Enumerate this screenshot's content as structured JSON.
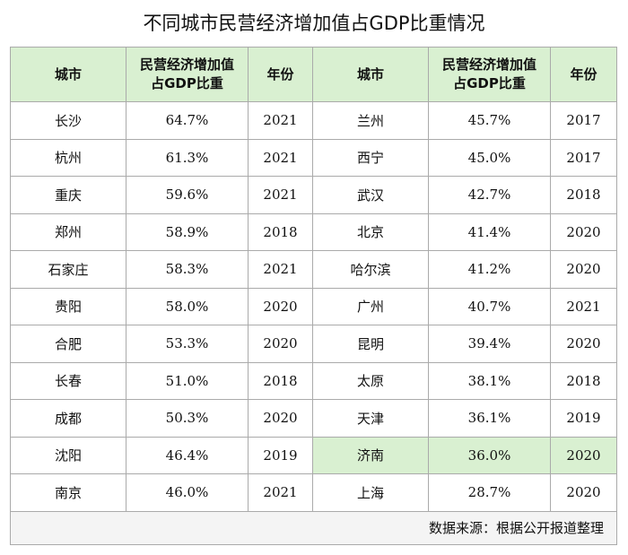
{
  "title": "不同城市民营经济增加值占GDP比重情况",
  "headers": {
    "city": "城市",
    "share_line1": "民营经济增加值",
    "share_line2": "占GDP比重",
    "year": "年份"
  },
  "left_rows": [
    {
      "city": "长沙",
      "share": "64.7%",
      "year": "2021"
    },
    {
      "city": "杭州",
      "share": "61.3%",
      "year": "2021"
    },
    {
      "city": "重庆",
      "share": "59.6%",
      "year": "2021"
    },
    {
      "city": "郑州",
      "share": "58.9%",
      "year": "2018"
    },
    {
      "city": "石家庄",
      "share": "58.3%",
      "year": "2021"
    },
    {
      "city": "贵阳",
      "share": "58.0%",
      "year": "2020"
    },
    {
      "city": "合肥",
      "share": "53.3%",
      "year": "2020"
    },
    {
      "city": "长春",
      "share": "51.0%",
      "year": "2018"
    },
    {
      "city": "成都",
      "share": "50.3%",
      "year": "2020"
    },
    {
      "city": "沈阳",
      "share": "46.4%",
      "year": "2019"
    },
    {
      "city": "南京",
      "share": "46.0%",
      "year": "2021"
    }
  ],
  "right_rows": [
    {
      "city": "兰州",
      "share": "45.7%",
      "year": "2017"
    },
    {
      "city": "西宁",
      "share": "45.0%",
      "year": "2017"
    },
    {
      "city": "武汉",
      "share": "42.7%",
      "year": "2018"
    },
    {
      "city": "北京",
      "share": "41.4%",
      "year": "2020"
    },
    {
      "city": "哈尔滨",
      "share": "41.2%",
      "year": "2020"
    },
    {
      "city": "广州",
      "share": "40.7%",
      "year": "2021"
    },
    {
      "city": "昆明",
      "share": "39.4%",
      "year": "2020"
    },
    {
      "city": "太原",
      "share": "38.1%",
      "year": "2018"
    },
    {
      "city": "天津",
      "share": "36.1%",
      "year": "2019"
    },
    {
      "city": "济南",
      "share": "36.0%",
      "year": "2020"
    },
    {
      "city": "上海",
      "share": "28.7%",
      "year": "2020"
    }
  ],
  "highlight_color": "#d9f0d1",
  "source": "数据来源：根据公开报道整理"
}
